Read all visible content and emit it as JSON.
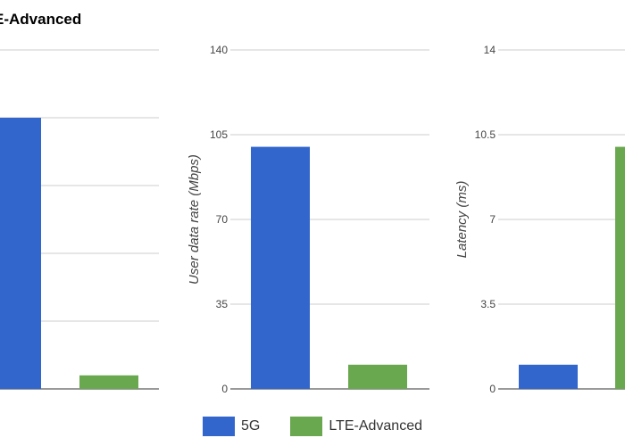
{
  "title": "E-Advanced",
  "legend": {
    "items": [
      {
        "label": "5G",
        "color": "#3366cc"
      },
      {
        "label": "LTE-Advanced",
        "color": "#6aa84f"
      }
    ]
  },
  "chart_data": [
    {
      "type": "bar",
      "categories": [
        "5G",
        "LTE-Advanced"
      ],
      "series": [
        {
          "name": "5G",
          "values": [
            20,
            null
          ]
        },
        {
          "name": "LTE-Advanced",
          "values": [
            null,
            1
          ]
        }
      ],
      "ylabel": "",
      "ylim": [
        0,
        25
      ],
      "yticks": [],
      "grid": true
    },
    {
      "type": "bar",
      "categories": [
        "5G",
        "LTE-Advanced"
      ],
      "series": [
        {
          "name": "5G",
          "values": [
            100,
            null
          ]
        },
        {
          "name": "LTE-Advanced",
          "values": [
            null,
            10
          ]
        }
      ],
      "ylabel": "User data rate (Mbps)",
      "ylim": [
        0,
        140
      ],
      "yticks": [
        "0",
        "35",
        "70",
        "105",
        "140"
      ],
      "grid": true
    },
    {
      "type": "bar",
      "categories": [
        "5G",
        "LTE-Advanced"
      ],
      "series": [
        {
          "name": "5G",
          "values": [
            1,
            null
          ]
        },
        {
          "name": "LTE-Advanced",
          "values": [
            null,
            10
          ]
        }
      ],
      "ylabel": "Latency (ms)",
      "ylim": [
        0,
        14
      ],
      "yticks": [
        "0",
        "3.5",
        "7",
        "10.5",
        "14"
      ],
      "grid": true
    }
  ]
}
